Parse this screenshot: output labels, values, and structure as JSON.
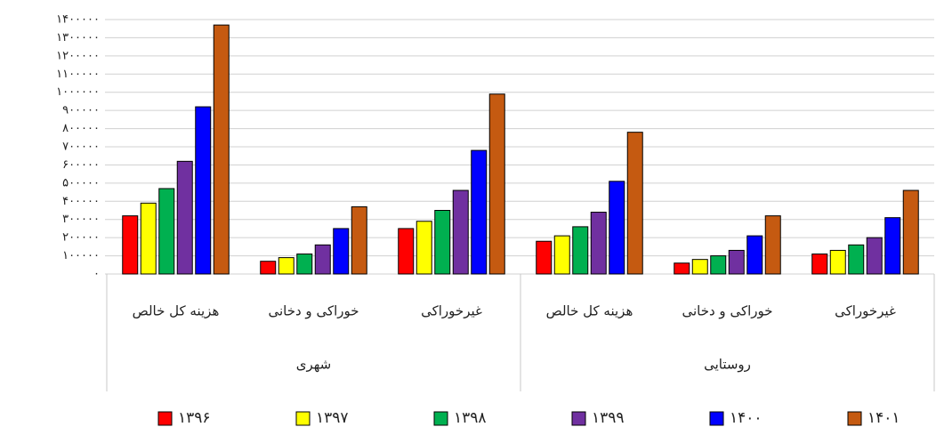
{
  "chart_data": {
    "type": "bar",
    "categories": [
      "هزینه کل خالص",
      "خوراکی و دخانی",
      "غیرخوراکی",
      "هزینه کل خالص",
      "خوراکی و دخانی",
      "غیرخوراکی"
    ],
    "category_groups": [
      "شهری",
      "روستایی"
    ],
    "series": [
      {
        "name": "۱۳۹۶",
        "color": "#ff0000",
        "values": [
          320000,
          70000,
          250000,
          180000,
          60000,
          110000
        ]
      },
      {
        "name": "۱۳۹۷",
        "color": "#ffff00",
        "values": [
          390000,
          90000,
          290000,
          210000,
          80000,
          130000
        ]
      },
      {
        "name": "۱۳۹۸",
        "color": "#00b050",
        "values": [
          470000,
          110000,
          350000,
          260000,
          100000,
          160000
        ]
      },
      {
        "name": "۱۳۹۹",
        "color": "#7030a0",
        "values": [
          620000,
          160000,
          460000,
          340000,
          130000,
          200000
        ]
      },
      {
        "name": "۱۴۰۰",
        "color": "#0000ff",
        "values": [
          920000,
          250000,
          680000,
          510000,
          210000,
          310000
        ]
      },
      {
        "name": "۱۴۰۱",
        "color": "#c55a11",
        "values": [
          1370000,
          370000,
          990000,
          780000,
          320000,
          460000
        ]
      }
    ],
    "ylim": [
      0,
      1400000
    ],
    "yticks": [
      {
        "value": 0,
        "label": "۰"
      },
      {
        "value": 100000,
        "label": "۱۰۰۰۰۰"
      },
      {
        "value": 200000,
        "label": "۲۰۰۰۰۰"
      },
      {
        "value": 300000,
        "label": "۳۰۰۰۰۰"
      },
      {
        "value": 400000,
        "label": "۴۰۰۰۰۰"
      },
      {
        "value": 500000,
        "label": "۵۰۰۰۰۰"
      },
      {
        "value": 600000,
        "label": "۶۰۰۰۰۰"
      },
      {
        "value": 700000,
        "label": "۷۰۰۰۰۰"
      },
      {
        "value": 800000,
        "label": "۸۰۰۰۰۰"
      },
      {
        "value": 900000,
        "label": "۹۰۰۰۰۰"
      },
      {
        "value": 1000000,
        "label": "۱۰۰۰۰۰۰"
      },
      {
        "value": 1100000,
        "label": "۱۱۰۰۰۰۰"
      },
      {
        "value": 1200000,
        "label": "۱۲۰۰۰۰۰"
      },
      {
        "value": 1300000,
        "label": "۱۳۰۰۰۰۰"
      },
      {
        "value": 1400000,
        "label": "۱۴۰۰۰۰۰"
      }
    ],
    "grid": true
  }
}
